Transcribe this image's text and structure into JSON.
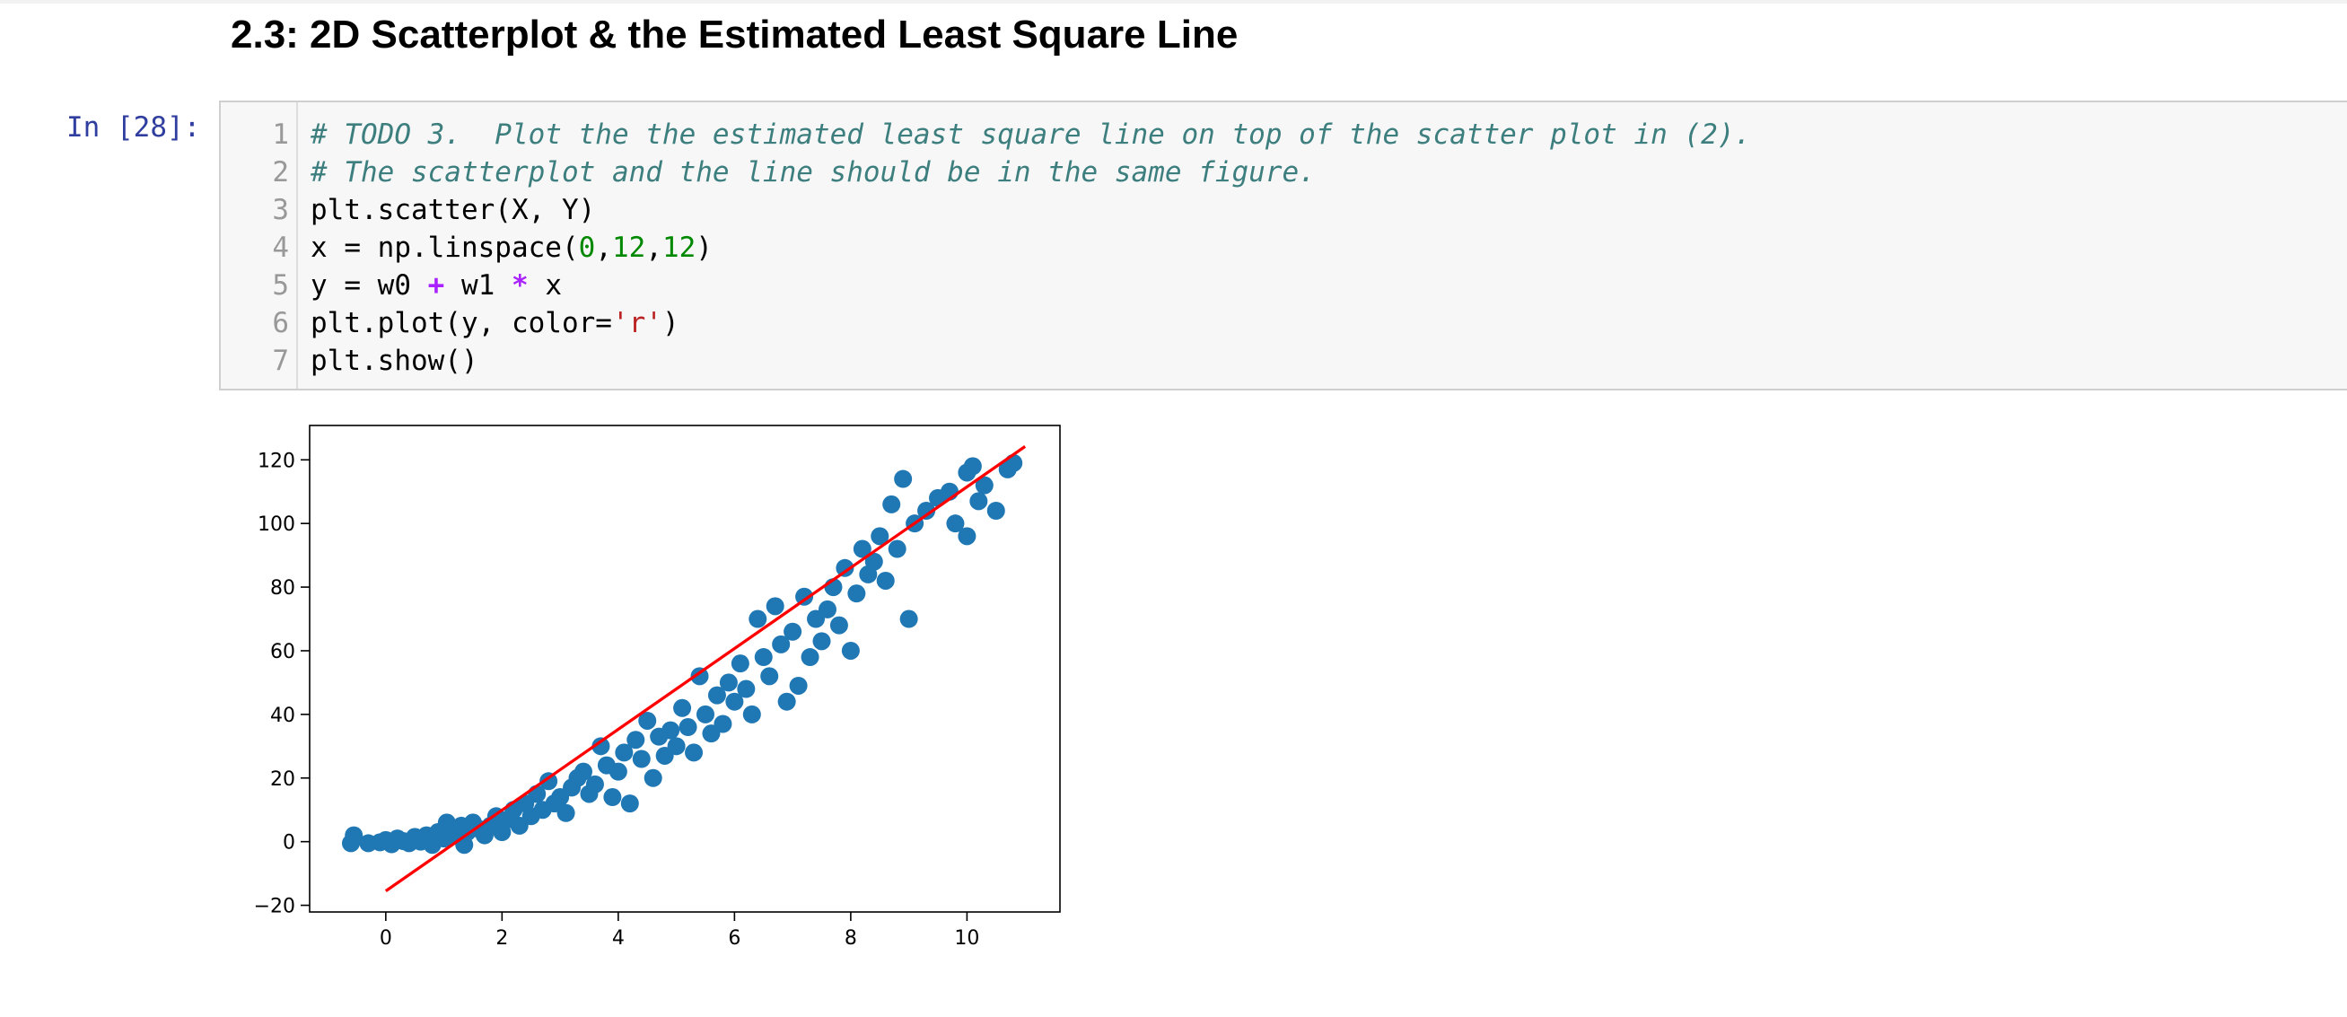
{
  "header": {
    "title": "2.3: 2D Scatterplot & the Estimated Least Square Line"
  },
  "cell": {
    "prompt": "In [28]:",
    "lines": [
      {
        "number": 1,
        "code": "# TODO 3.  Plot the the estimated least square line on top of the scatter plot in (2)."
      },
      {
        "number": 2,
        "code": "# The scatterplot and the line should be in the same figure."
      },
      {
        "number": 3,
        "code": "plt.scatter(X, Y)"
      },
      {
        "number": 4,
        "code": "x = np.linspace(0,12,12)"
      },
      {
        "number": 5,
        "code": "y = w0 + w1 * x"
      },
      {
        "number": 6,
        "code": "plt.plot(y, color='r')"
      },
      {
        "number": 7,
        "code": "plt.show()"
      }
    ]
  },
  "chart_data": {
    "type": "scatter",
    "xlim": [
      -1.31,
      11.6
    ],
    "ylim": [
      -22.1,
      130.8
    ],
    "xticks": [
      0,
      2,
      4,
      6,
      8,
      10
    ],
    "yticks": [
      {
        "value": -20,
        "label": "−20"
      },
      0,
      20,
      40,
      60,
      80,
      100,
      120
    ],
    "series": [
      {
        "type": "scatter",
        "color": "#1f77b4",
        "x": [
          -0.6,
          -0.55,
          -0.3,
          -0.1,
          0.0,
          0.1,
          0.2,
          0.3,
          0.4,
          0.5,
          0.6,
          0.7,
          0.8,
          0.9,
          1.0,
          1.05,
          1.1,
          1.2,
          1.3,
          1.35,
          1.4,
          1.5,
          1.6,
          1.7,
          1.8,
          1.9,
          2.0,
          2.1,
          2.2,
          2.3,
          2.4,
          2.5,
          2.6,
          2.7,
          2.8,
          2.9,
          3.0,
          3.1,
          3.2,
          3.3,
          3.4,
          3.5,
          3.6,
          3.7,
          3.8,
          3.9,
          4.0,
          4.1,
          4.2,
          4.3,
          4.4,
          4.5,
          4.6,
          4.7,
          4.8,
          4.9,
          5.0,
          5.1,
          5.2,
          5.3,
          5.4,
          5.5,
          5.6,
          5.7,
          5.8,
          5.9,
          6.0,
          6.1,
          6.2,
          6.3,
          6.4,
          6.5,
          6.6,
          6.7,
          6.8,
          6.9,
          7.0,
          7.1,
          7.2,
          7.3,
          7.4,
          7.5,
          7.6,
          7.7,
          7.8,
          7.9,
          8.0,
          8.1,
          8.2,
          8.3,
          8.4,
          8.5,
          8.6,
          8.7,
          8.8,
          8.9,
          9.0,
          9.1,
          9.3,
          9.5,
          9.7,
          9.8,
          10.0,
          10.0,
          10.1,
          10.2,
          10.3,
          10.5,
          10.7,
          10.8
        ],
        "values": [
          -0.5,
          2,
          -0.5,
          -0.2,
          0.5,
          -0.8,
          1,
          0.2,
          -0.5,
          1.5,
          0,
          2,
          -1,
          3,
          1,
          6,
          4,
          2,
          5,
          -1,
          3,
          6,
          4,
          2,
          5,
          8,
          3,
          7,
          10,
          5,
          12,
          8,
          15,
          10,
          19,
          12,
          14,
          9,
          17,
          20,
          22,
          15,
          18,
          30,
          24,
          14,
          22,
          28,
          12,
          32,
          26,
          38,
          20,
          33,
          27,
          35,
          30,
          42,
          36,
          28,
          52,
          40,
          34,
          46,
          37,
          50,
          44,
          56,
          48,
          40,
          70,
          58,
          52,
          74,
          62,
          44,
          66,
          49,
          77,
          58,
          70,
          63,
          73,
          80,
          68,
          86,
          60,
          78,
          92,
          84,
          88,
          96,
          82,
          106,
          92,
          114,
          70,
          100,
          104,
          108,
          110,
          100,
          96,
          116,
          118,
          107,
          112,
          104,
          117,
          119
        ]
      },
      {
        "type": "line",
        "color": "red",
        "x": [
          0,
          1,
          2,
          3,
          4,
          5,
          6,
          7,
          8,
          9,
          10,
          11
        ],
        "values": [
          -15.5,
          -2.8,
          9.9,
          22.6,
          35.3,
          48.0,
          60.7,
          73.4,
          86.1,
          98.8,
          111.5,
          124.2
        ]
      }
    ]
  }
}
